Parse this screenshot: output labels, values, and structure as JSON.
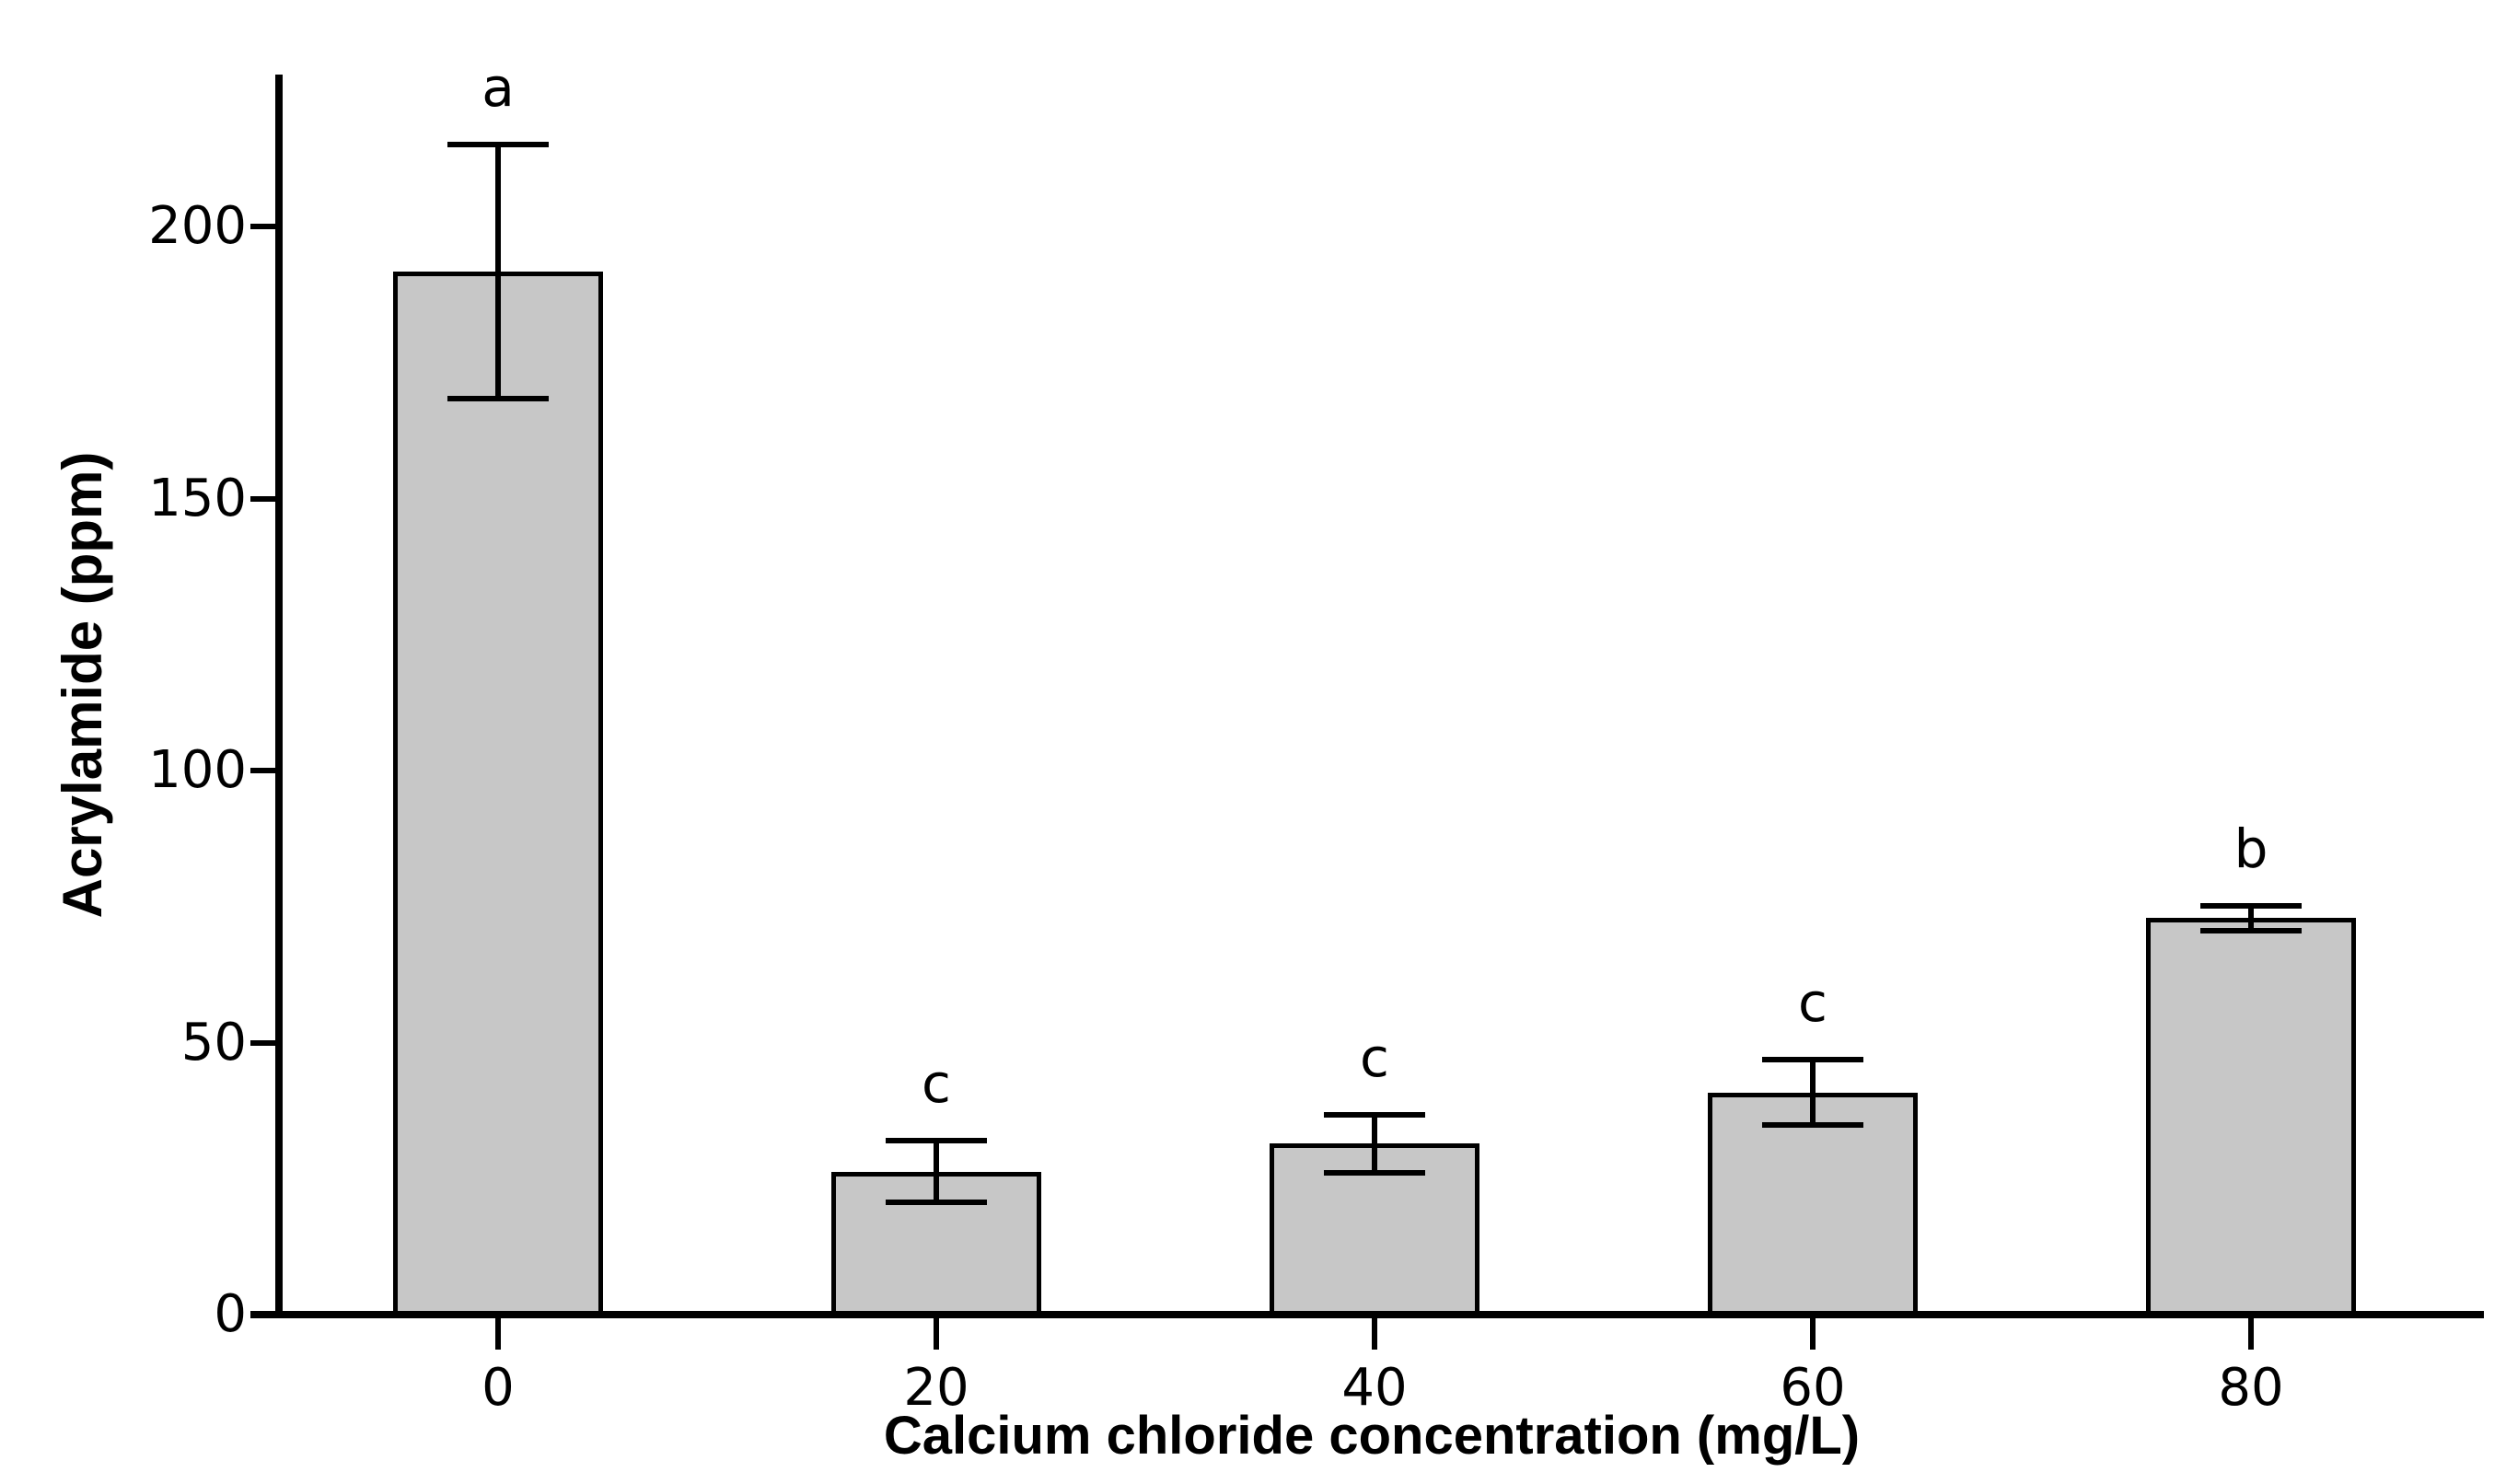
{
  "chart_data": {
    "type": "bar",
    "title": "",
    "xlabel": "Calcium chloride concentration (mg/L)",
    "ylabel": "Acrylamide (ppm)",
    "categories": [
      "0",
      "20",
      "40",
      "60",
      "80"
    ],
    "values": [
      191.7,
      26.3,
      31.4,
      40.8,
      72.9
    ],
    "errors": [
      23.4,
      5.6,
      5.4,
      6.0,
      2.3
    ],
    "sig_letters": [
      "a",
      "c",
      "c",
      "c",
      "b"
    ],
    "yticks": [
      "0",
      "50",
      "100",
      "150",
      "200"
    ],
    "ytick_values": [
      0,
      50,
      100,
      150,
      200
    ],
    "ylim": [
      0,
      228
    ],
    "bar_color": "#c7c7c7",
    "axis_color": "#000000",
    "grid": false,
    "legend_position": "none",
    "error_bar_style": "caps-both-ends"
  }
}
